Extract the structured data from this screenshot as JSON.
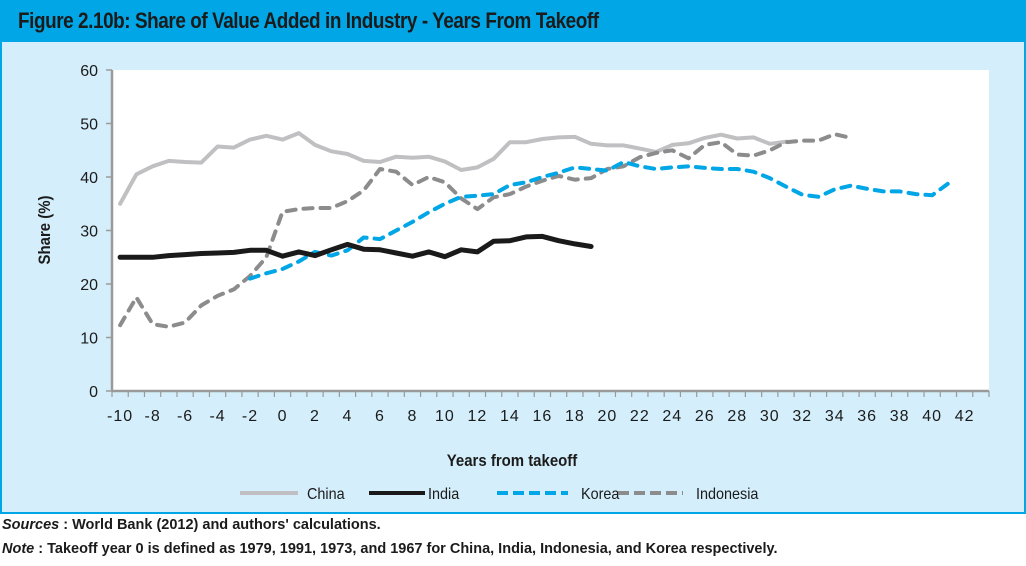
{
  "figure": {
    "title": "Figure 2.10b:   Share of Value Added in Industry - Years From Takeoff"
  },
  "footnotes": {
    "sources_label": "Sources",
    "sources_text": " : World Bank (2012) and authors' calculations.",
    "note_label": "Note",
    "note_text": " : Takeoff year 0 is defined as 1979, 1991, 1973, and 1967 for China, India, Indonesia, and Korea respectively."
  },
  "chart_data": {
    "type": "line",
    "title": "Share of Value Added in Industry - Years From Takeoff",
    "xlabel": "Years from takeoff",
    "ylabel": "Share (%)",
    "ylim": [
      0,
      60
    ],
    "yticks": [
      0,
      10,
      20,
      30,
      40,
      50,
      60
    ],
    "xlim": [
      -10,
      43
    ],
    "xtick_labels": [
      "-10",
      "-8",
      "-6",
      "-4",
      "-2",
      "0",
      "2",
      "4",
      "6",
      "8",
      "10",
      "12",
      "14",
      "16",
      "18",
      "20",
      "22",
      "24",
      "26",
      "28",
      "30",
      "32",
      "34",
      "36",
      "38",
      "40",
      "42"
    ],
    "grid": false,
    "legend_position": "bottom",
    "series": [
      {
        "name": "China",
        "color": "#c0c0c2",
        "style": "solid",
        "x_start": -10,
        "values": [
          35,
          40.5,
          42,
          43,
          42.8,
          42.7,
          45.7,
          45.5,
          47,
          47.7,
          47,
          48.2,
          46,
          44.8,
          44.3,
          43,
          42.8,
          43.8,
          43.6,
          43.8,
          42.9,
          41.3,
          41.8,
          43.4,
          46.5,
          46.5,
          47.1,
          47.4,
          47.5,
          46.2,
          45.9,
          45.9,
          45.3,
          44.7,
          46,
          46.3,
          47.3,
          47.9,
          47.2,
          47.4,
          46.2,
          46.6
        ]
      },
      {
        "name": "India",
        "color": "#1a1a1a",
        "style": "solid",
        "x_start": -10,
        "values": [
          25,
          25,
          25,
          25.3,
          25.5,
          25.7,
          25.8,
          25.9,
          26.3,
          26.3,
          25.2,
          26,
          25.3,
          26.4,
          27.4,
          26.5,
          26.4,
          25.8,
          25.2,
          26,
          25.1,
          26.4,
          26,
          28,
          28.1,
          28.8,
          28.9,
          28.1,
          27.5,
          27
        ]
      },
      {
        "name": "Korea",
        "color": "#00a6e6",
        "style": "dashed",
        "x_start": -2,
        "values": [
          21,
          22,
          22.8,
          24.2,
          26,
          25.3,
          26.3,
          28.7,
          28.4,
          30,
          31.6,
          33.4,
          35,
          36.3,
          36.5,
          36.8,
          38.5,
          39,
          40,
          40.8,
          41.8,
          41.5,
          41.2,
          42.8,
          42,
          41.5,
          41.8,
          42,
          41.7,
          41.5,
          41.5,
          41,
          39.8,
          38.2,
          36.7,
          36.3,
          37.7,
          38.4,
          37.8,
          37.3,
          37.3,
          36.8,
          36.6,
          38.8
        ]
      },
      {
        "name": "Indonesia",
        "color": "#8c8c8c",
        "style": "dashed",
        "x_start": -10,
        "values": [
          12.3,
          17.5,
          12.5,
          12,
          12.8,
          16,
          17.8,
          19,
          21.5,
          25,
          33.5,
          34,
          34.2,
          34.2,
          35.5,
          37.5,
          41.5,
          41,
          38.5,
          40,
          39,
          36,
          34,
          36.2,
          36.8,
          38.2,
          39.3,
          40.2,
          39.5,
          39.8,
          41.5,
          42,
          43.7,
          44.5,
          45,
          43.5,
          46,
          46.5,
          44.2,
          44,
          45,
          46.5,
          46.8,
          46.8,
          48,
          47.3
        ]
      }
    ]
  }
}
